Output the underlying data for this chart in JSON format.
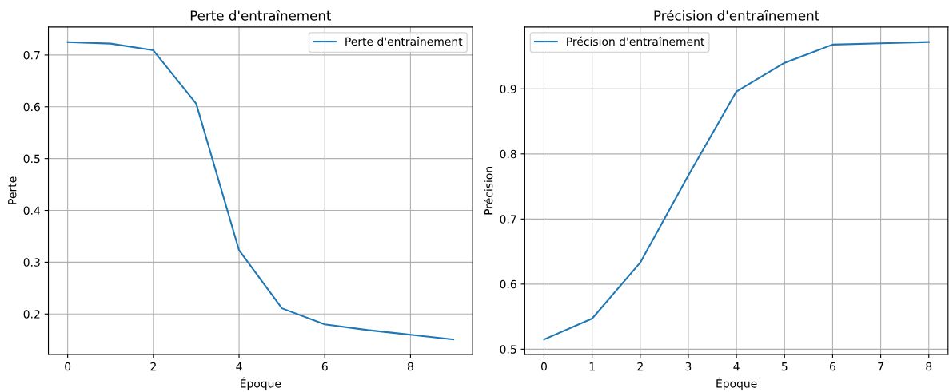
{
  "chart_data": [
    {
      "type": "line",
      "title": "Perte d'entraînement",
      "xlabel": "Époque",
      "ylabel": "Perte",
      "x": [
        0,
        1,
        2,
        3,
        4,
        5,
        6,
        7,
        8,
        9
      ],
      "series": [
        {
          "name": "Perte d'entraînement",
          "color": "#1f77b4",
          "values": [
            0.725,
            0.722,
            0.709,
            0.606,
            0.323,
            0.211,
            0.18,
            0.169,
            0.16,
            0.151
          ]
        }
      ],
      "xlim": [
        -0.45,
        9.45
      ],
      "xticks": [
        0,
        2,
        4,
        6,
        8
      ],
      "ylim": [
        0.122,
        0.754
      ],
      "yticks": [
        0.2,
        0.3,
        0.4,
        0.5,
        0.6,
        0.7
      ],
      "grid": true,
      "legend": "top right"
    },
    {
      "type": "line",
      "title": "Précision d'entraînement",
      "xlabel": "Époque",
      "ylabel": "Précision",
      "x": [
        0,
        1,
        2,
        3,
        4,
        5,
        6,
        7,
        8
      ],
      "series": [
        {
          "name": "Précision d'entraînement",
          "color": "#1f77b4",
          "values": [
            0.515,
            0.547,
            0.633,
            0.767,
            0.896,
            0.94,
            0.968,
            0.97,
            0.972
          ]
        }
      ],
      "xlim": [
        -0.4,
        8.4
      ],
      "xticks": [
        0,
        1,
        2,
        3,
        4,
        5,
        6,
        7,
        8
      ],
      "ylim": [
        0.492,
        0.995
      ],
      "yticks": [
        0.5,
        0.6,
        0.7,
        0.8,
        0.9
      ],
      "grid": true,
      "legend": "top left"
    }
  ]
}
